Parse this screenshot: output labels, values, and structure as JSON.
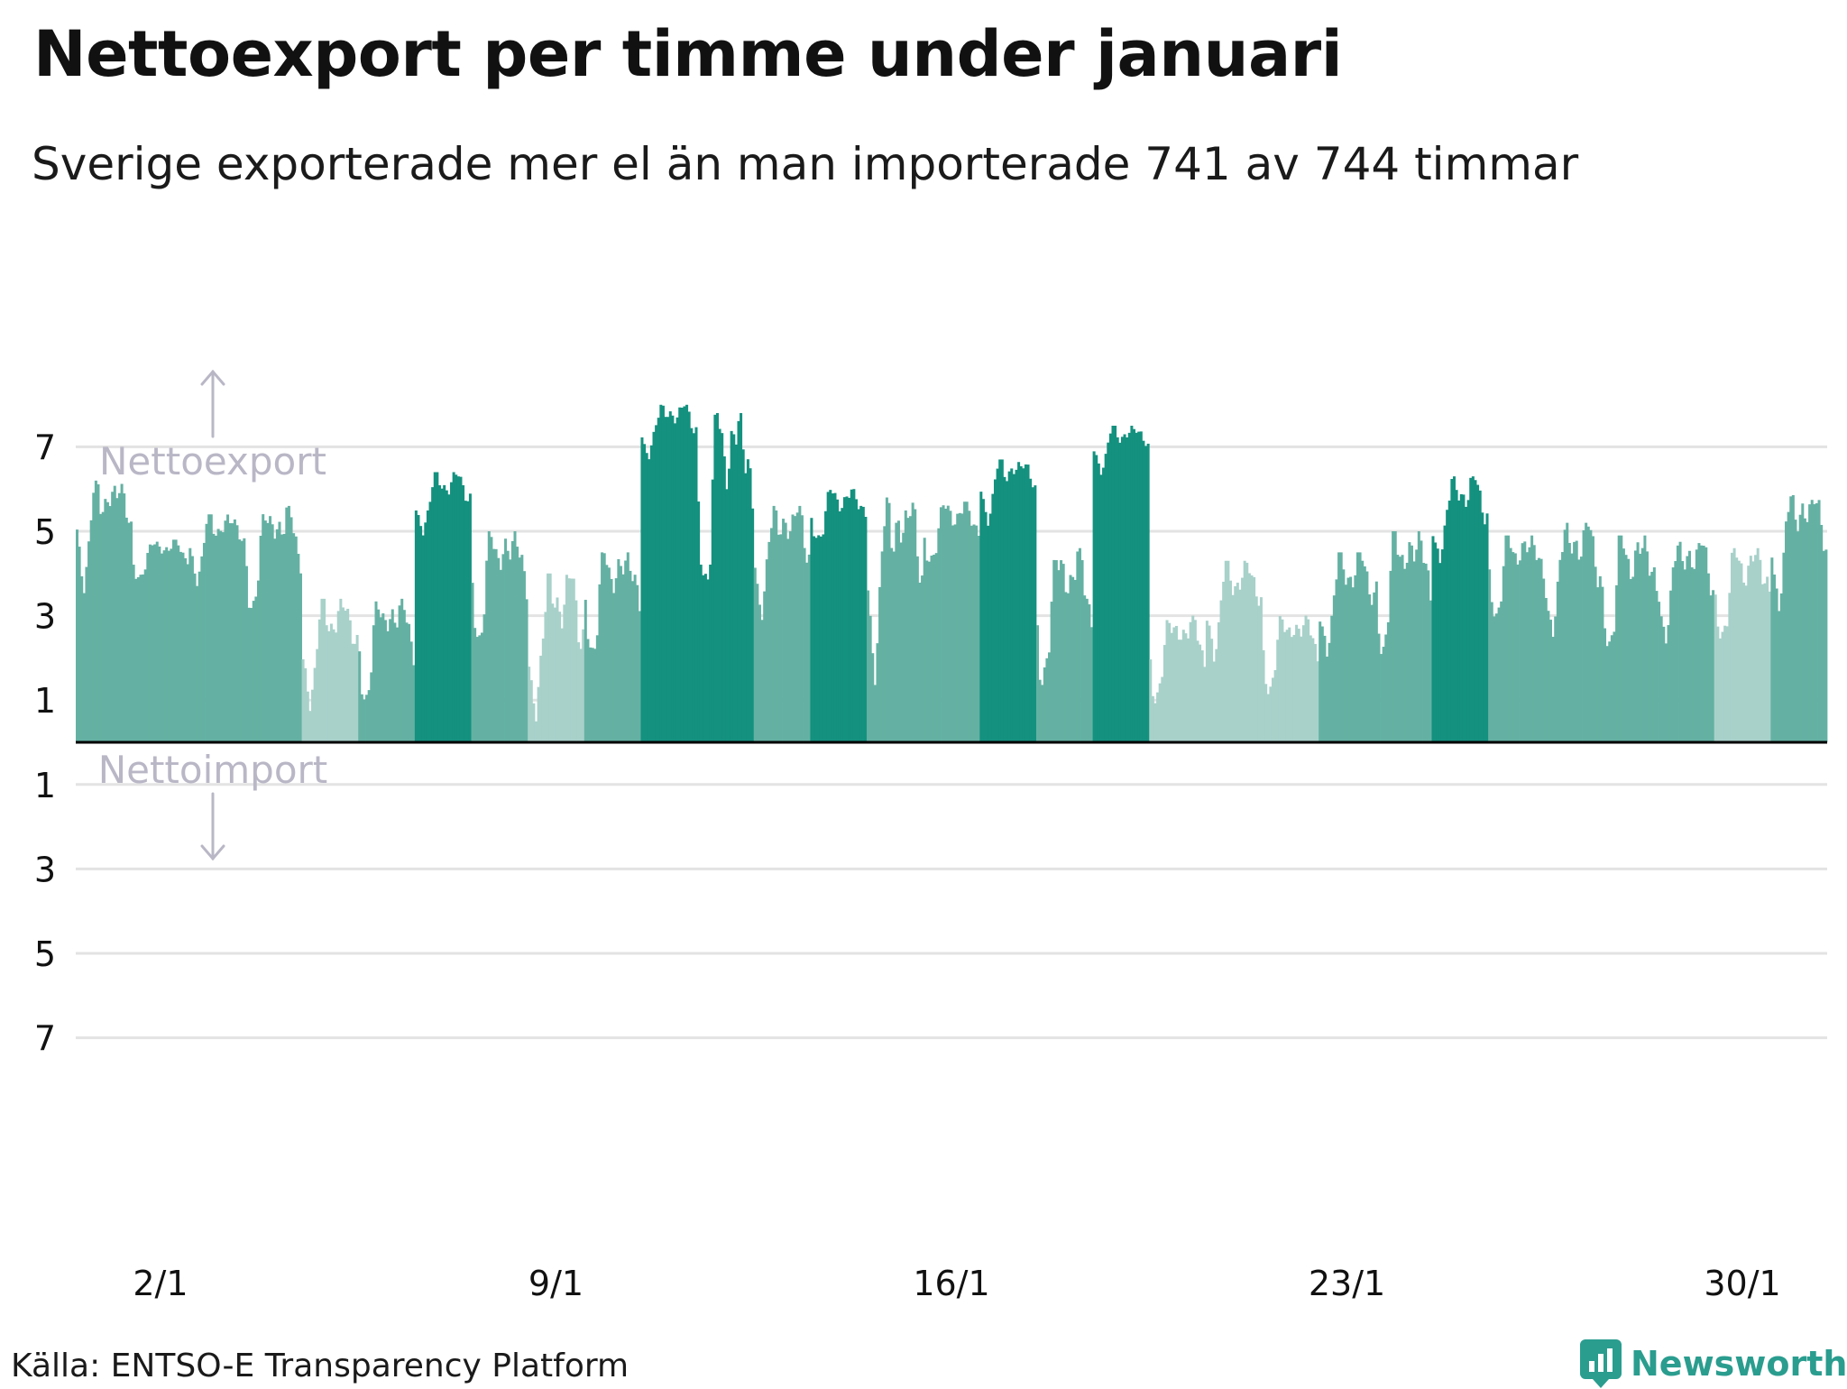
{
  "title": "Nettoexport per timme under januari",
  "subtitle": "Sverige exporterade mer el än man importerade 741 av 744 timmar",
  "source": "Källa: ENTSO-E Transparency Platform",
  "brand": "Newsworthy",
  "colors": {
    "light": "#a8d1ca",
    "medium": "#64b1a3",
    "dark": "#14917f",
    "import": "#e8a33d",
    "grid": "#e3e3e3",
    "axis": "#000000",
    "annotation": "#b9b7c6",
    "brand": "#2a9d8f"
  },
  "chart_data": {
    "type": "bar",
    "title": "Nettoexport per timme under januari",
    "subtitle": "Sverige exporterade mer el än man importerade 741 av 744 timmar",
    "xlabel": "",
    "ylabel": "",
    "ylim": [
      -9.8,
      9.2
    ],
    "y_ticks": [
      {
        "value": 7,
        "label": "7"
      },
      {
        "value": 5,
        "label": "5"
      },
      {
        "value": 3,
        "label": "3"
      },
      {
        "value": 1,
        "label": "1"
      },
      {
        "value": -1,
        "label": "1"
      },
      {
        "value": -3,
        "label": "3"
      },
      {
        "value": -5,
        "label": "5"
      },
      {
        "value": -7,
        "label": "7"
      }
    ],
    "x_ticks": [
      {
        "day": 2,
        "label": "2/1"
      },
      {
        "day": 9,
        "label": "9/1"
      },
      {
        "day": 16,
        "label": "16/1"
      },
      {
        "day": 23,
        "label": "23/1"
      },
      {
        "day": 30,
        "label": "30/1"
      }
    ],
    "annotations": {
      "export": "Nettoexport",
      "import": "Nettoimport"
    },
    "grid": true,
    "legend": "none",
    "hours": 744,
    "daily_profile": [
      {
        "date": "1/1",
        "min": 3.3,
        "max": 6.2,
        "shade": "medium"
      },
      {
        "date": "2/1",
        "min": 3.6,
        "max": 4.8,
        "shade": "medium"
      },
      {
        "date": "3/1",
        "min": 3.5,
        "max": 5.4,
        "shade": "medium"
      },
      {
        "date": "4/1",
        "min": 2.5,
        "max": 5.6,
        "shade": "medium"
      },
      {
        "date": "5/1",
        "min": 0.3,
        "max": 3.4,
        "shade": "light"
      },
      {
        "date": "6/1",
        "min": 0.4,
        "max": 3.4,
        "shade": "medium"
      },
      {
        "date": "7/1",
        "min": 4.6,
        "max": 6.4,
        "shade": "dark"
      },
      {
        "date": "8/1",
        "min": 1.8,
        "max": 5.0,
        "shade": "medium"
      },
      {
        "date": "9/1",
        "min": -0.2,
        "max": 4.0,
        "shade": "light"
      },
      {
        "date": "10/1",
        "min": 1.5,
        "max": 4.5,
        "shade": "medium"
      },
      {
        "date": "11/1",
        "min": 6.5,
        "max": 8.0,
        "shade": "dark"
      },
      {
        "date": "12/1",
        "min": 2.5,
        "max": 7.8,
        "shade": "dark"
      },
      {
        "date": "13/1",
        "min": 2.6,
        "max": 5.6,
        "shade": "medium"
      },
      {
        "date": "14/1",
        "min": 4.4,
        "max": 6.0,
        "shade": "dark"
      },
      {
        "date": "15/1",
        "min": 1.0,
        "max": 5.8,
        "shade": "medium"
      },
      {
        "date": "16/1",
        "min": 3.8,
        "max": 5.7,
        "shade": "medium"
      },
      {
        "date": "17/1",
        "min": 5.0,
        "max": 6.7,
        "shade": "dark"
      },
      {
        "date": "18/1",
        "min": 0.5,
        "max": 4.6,
        "shade": "medium"
      },
      {
        "date": "19/1",
        "min": 6.2,
        "max": 7.5,
        "shade": "dark"
      },
      {
        "date": "20/1",
        "min": 0.5,
        "max": 3.0,
        "shade": "light"
      },
      {
        "date": "21/1",
        "min": 1.5,
        "max": 4.3,
        "shade": "light"
      },
      {
        "date": "22/1",
        "min": 0.8,
        "max": 3.0,
        "shade": "light"
      },
      {
        "date": "23/1",
        "min": 1.5,
        "max": 4.5,
        "shade": "medium"
      },
      {
        "date": "24/1",
        "min": 1.5,
        "max": 5.0,
        "shade": "medium"
      },
      {
        "date": "25/1",
        "min": 3.8,
        "max": 6.3,
        "shade": "dark"
      },
      {
        "date": "26/1",
        "min": 2.5,
        "max": 4.9,
        "shade": "medium"
      },
      {
        "date": "27/1",
        "min": 2.0,
        "max": 5.2,
        "shade": "medium"
      },
      {
        "date": "28/1",
        "min": 1.5,
        "max": 4.9,
        "shade": "medium"
      },
      {
        "date": "29/1",
        "min": 2.0,
        "max": 4.8,
        "shade": "medium"
      },
      {
        "date": "30/1",
        "min": 1.8,
        "max": 4.6,
        "shade": "light"
      },
      {
        "date": "31/1",
        "min": 2.8,
        "max": 5.9,
        "shade": "medium"
      }
    ]
  }
}
